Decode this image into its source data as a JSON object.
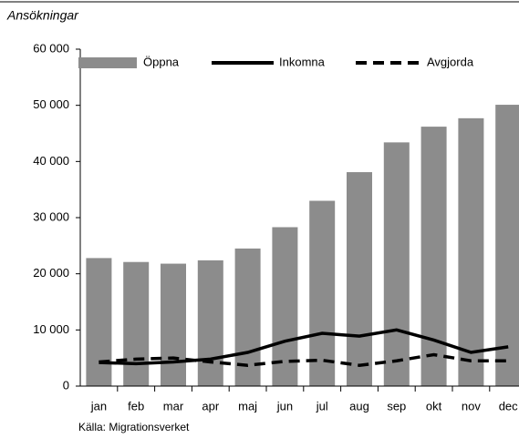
{
  "chart_data": {
    "type": "bar_line",
    "title": "Ansökningar",
    "source": "Källa: Migrationsverket",
    "categories": [
      "jan",
      "feb",
      "mar",
      "apr",
      "maj",
      "jun",
      "jul",
      "aug",
      "sep",
      "okt",
      "nov",
      "dec"
    ],
    "series": [
      {
        "name": "Öppna",
        "type": "bar",
        "color": "#8c8c8c",
        "values": [
          22800,
          22100,
          21800,
          22400,
          24500,
          28300,
          33000,
          38100,
          43400,
          46200,
          47700,
          50100
        ]
      },
      {
        "name": "Inkomna",
        "type": "line",
        "color": "#000000",
        "dash": "solid",
        "values": [
          4200,
          4000,
          4300,
          4800,
          6000,
          8000,
          9400,
          8900,
          10000,
          8200,
          6000,
          7000
        ]
      },
      {
        "name": "Avgjorda",
        "type": "line",
        "color": "#000000",
        "dash": "dashed",
        "values": [
          4300,
          4800,
          5000,
          4300,
          3700,
          4400,
          4600,
          3700,
          4500,
          5600,
          4500,
          4500
        ]
      }
    ],
    "ylim": [
      0,
      60000
    ],
    "yticks": [
      0,
      {
        "value": 10000,
        "label": "10 000"
      },
      {
        "value": 20000,
        "label": "20 000"
      },
      {
        "value": 30000,
        "label": "30 000"
      },
      {
        "value": 40000,
        "label": "40 000"
      },
      {
        "value": 50000,
        "label": "50 000"
      },
      {
        "value": 60000,
        "label": "60 000"
      }
    ],
    "legend": "top"
  }
}
